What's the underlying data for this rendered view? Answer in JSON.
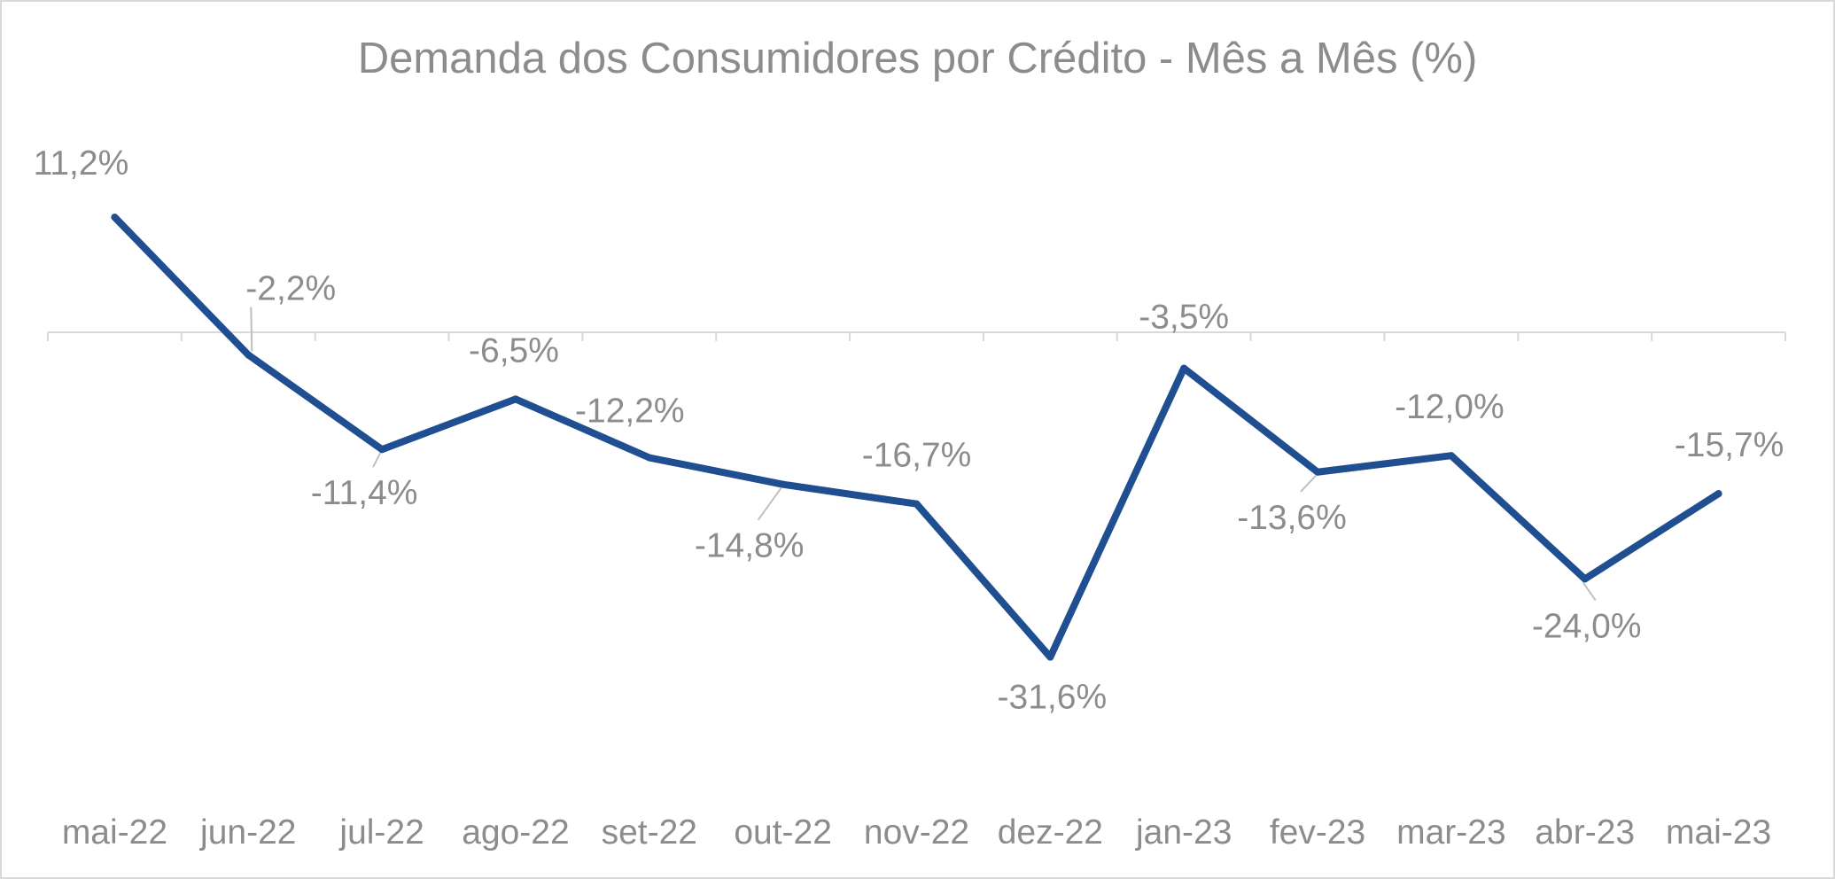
{
  "colors": {
    "line": "#1f4e91",
    "axis": "#d9d9d9",
    "text": "#8c8c8c",
    "leader": "#bfbfbf",
    "background": "#ffffff"
  },
  "chart_data": {
    "type": "line",
    "title": "Demanda dos Consumidores por Crédito - Mês a Mês (%)",
    "xlabel": "",
    "ylabel": "",
    "grid": false,
    "legend": "none",
    "ylim": [
      -36.5,
      13.5
    ],
    "categories": [
      "mai-22",
      "jun-22",
      "jul-22",
      "ago-22",
      "set-22",
      "out-22",
      "nov-22",
      "dez-22",
      "jan-23",
      "fev-23",
      "mar-23",
      "abr-23",
      "mai-23"
    ],
    "series": [
      {
        "values": [
          11.2,
          -2.2,
          -11.4,
          -6.5,
          -12.2,
          -14.8,
          -16.7,
          -31.6,
          -3.5,
          -13.6,
          -12.0,
          -24.0,
          -15.7
        ],
        "labels": [
          "11,2%",
          "-2,2%",
          "-11,4%",
          "-6,5%",
          "-12,2%",
          "-14,8%",
          "-16,7%",
          "-31,6%",
          "-3,5%",
          "-13,6%",
          "-12,0%",
          "-24,0%",
          "-15,7%"
        ]
      }
    ]
  }
}
